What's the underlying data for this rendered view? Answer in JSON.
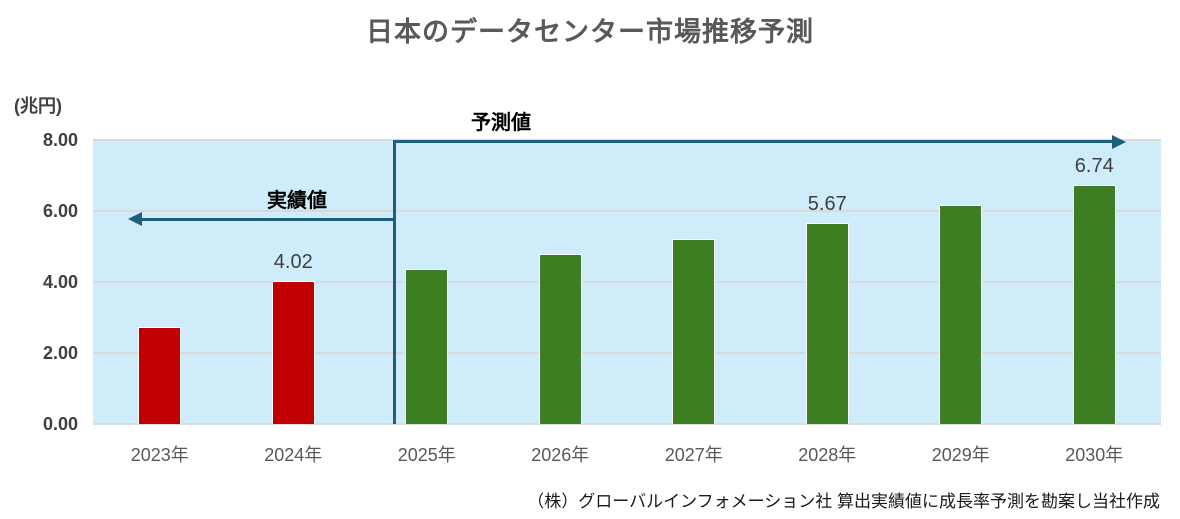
{
  "title": "日本のデータセンター市場推移予測",
  "y_axis": {
    "unit": "(兆円)",
    "ticks": [
      {
        "value": 8,
        "label": "8.00"
      },
      {
        "value": 6,
        "label": "6.00"
      },
      {
        "value": 4,
        "label": "4.00"
      },
      {
        "value": 2,
        "label": "2.00"
      },
      {
        "value": 0,
        "label": "0.00"
      }
    ]
  },
  "annotations": {
    "actual_label": "実績値",
    "forecast_label": "予測値"
  },
  "footer": "（株）グローバルインフォメーション社 算出実績値に成長率予測を勘案し当社作成",
  "colors": {
    "actual_bar": "#c00000",
    "forecast_bar": "#3e7e23",
    "plot_background": "#cfecfa",
    "arrow": "#1e5f7e",
    "gridline": "#d9d9d9",
    "title_text": "#595959",
    "axis_text": "#404040",
    "x_label_text": "#595959",
    "value_label_text": "#404040",
    "footer_text": "#1a1a1a"
  },
  "chart_data": {
    "type": "bar",
    "title": "日本のデータセンター市場推移予測",
    "categories": [
      "2023年",
      "2024年",
      "2025年",
      "2026年",
      "2027年",
      "2028年",
      "2029年",
      "2030年"
    ],
    "values": [
      2.72,
      4.02,
      4.38,
      4.78,
      5.21,
      5.67,
      6.18,
      6.74
    ],
    "bar_labels": [
      "",
      "4.02",
      "",
      "",
      "",
      "5.67",
      "",
      "6.74"
    ],
    "series_membership": [
      "actual",
      "actual",
      "forecast",
      "forecast",
      "forecast",
      "forecast",
      "forecast",
      "forecast"
    ],
    "series": [
      {
        "name": "実績値",
        "categories": [
          "2023年",
          "2024年"
        ],
        "values": [
          2.72,
          4.02
        ],
        "color": "#c00000"
      },
      {
        "name": "予測値",
        "categories": [
          "2025年",
          "2026年",
          "2027年",
          "2028年",
          "2029年",
          "2030年"
        ],
        "values": [
          4.38,
          4.78,
          5.21,
          5.67,
          6.18,
          6.74
        ],
        "color": "#3e7e23"
      }
    ],
    "ylabel": "(兆円)",
    "ylim": [
      0,
      8
    ],
    "ytick_interval": 2,
    "grid": true,
    "legend": "none"
  }
}
